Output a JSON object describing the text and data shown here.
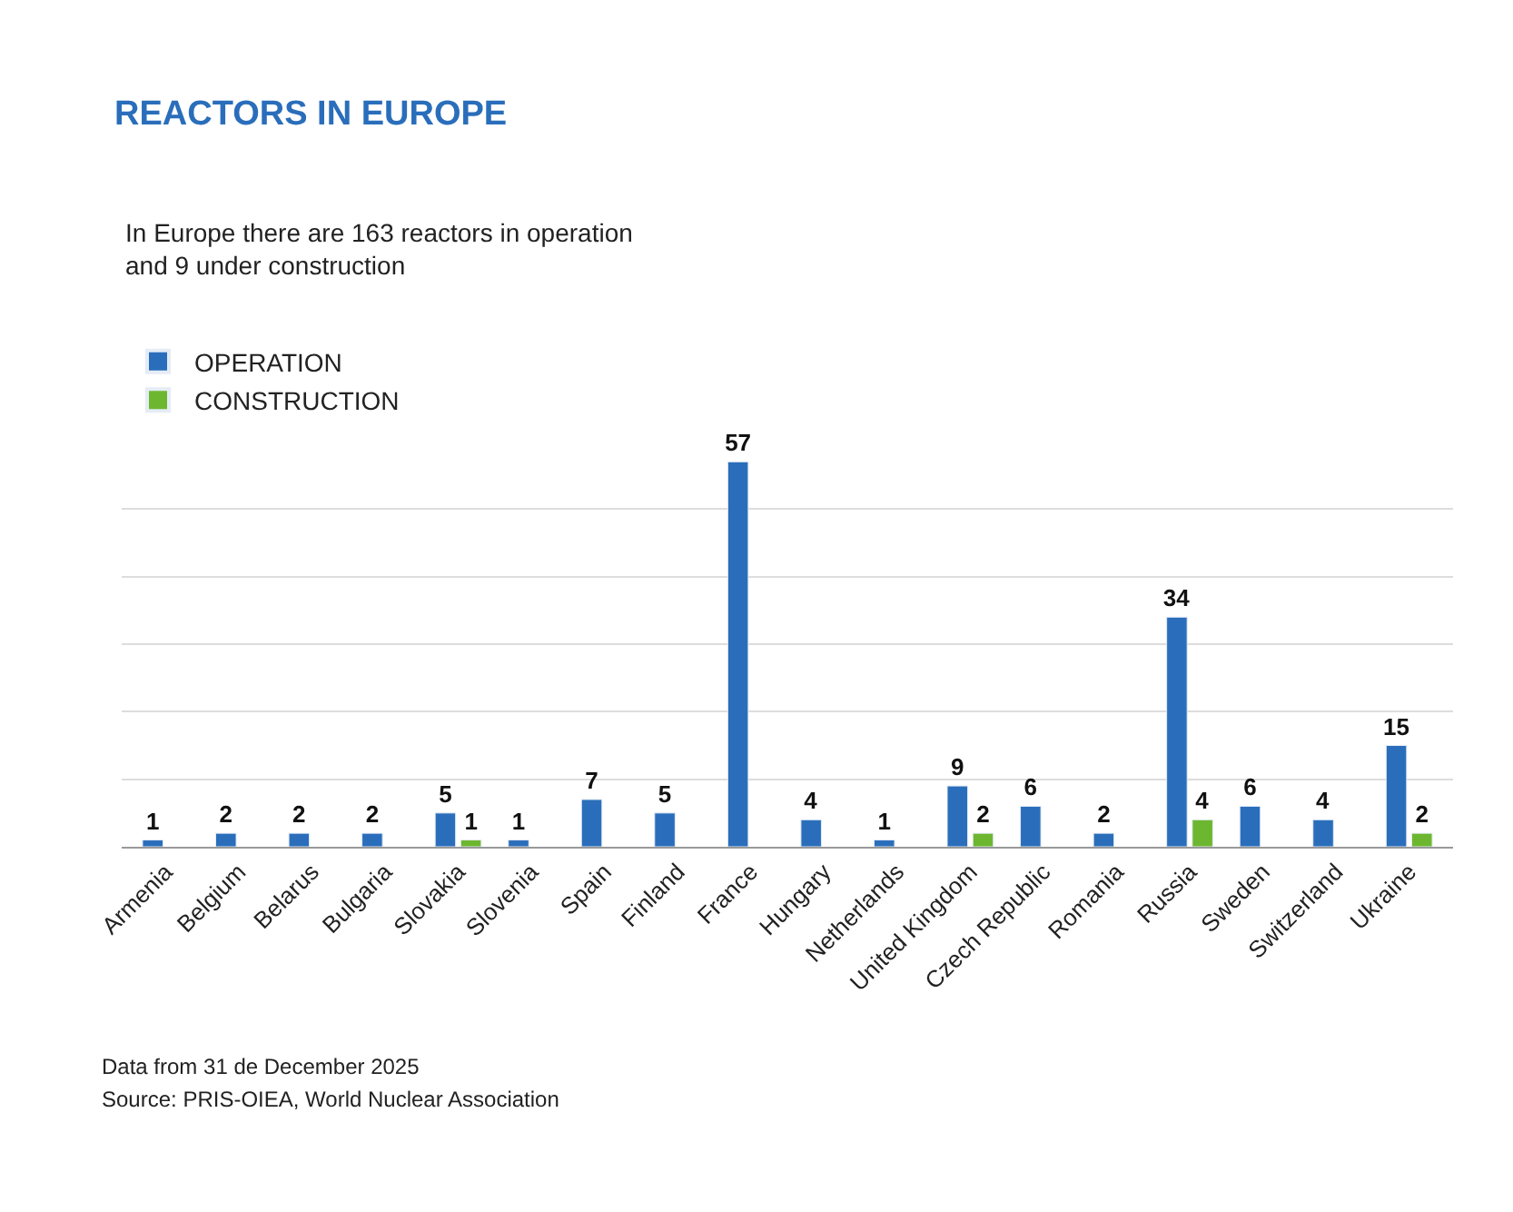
{
  "chart_data": {
    "type": "bar",
    "title": "REACTORS IN EUROPE",
    "subtitle": "In Europe there are 163 reactors in operation\nand 9 under construction",
    "categories": [
      "Armenia",
      "Belgium",
      "Belarus",
      "Bulgaria",
      "Slovakia",
      "Slovenia",
      "Spain",
      "Finland",
      "France",
      "Hungary",
      "Netherlands",
      "United Kingdom",
      "Czech Republic",
      "Romania",
      "Russia",
      "Sweden",
      "Switzerland",
      "Ukraine"
    ],
    "series": [
      {
        "name": "OPERATION",
        "color": "#2a6ebb",
        "values": [
          1,
          2,
          2,
          2,
          5,
          1,
          7,
          5,
          57,
          4,
          1,
          9,
          6,
          2,
          34,
          6,
          4,
          15
        ]
      },
      {
        "name": "CONSTRUCTION",
        "color": "#6cb72f",
        "values": [
          null,
          null,
          null,
          null,
          1,
          null,
          null,
          null,
          null,
          null,
          null,
          2,
          null,
          null,
          4,
          null,
          null,
          2
        ]
      }
    ],
    "tick_labels": "x",
    "grid": "y",
    "legend": "top left",
    "data_labels": true,
    "annotations": [
      "Data from 31 de December 2025",
      "Source: PRIS-OIEA, World Nuclear Association"
    ]
  }
}
